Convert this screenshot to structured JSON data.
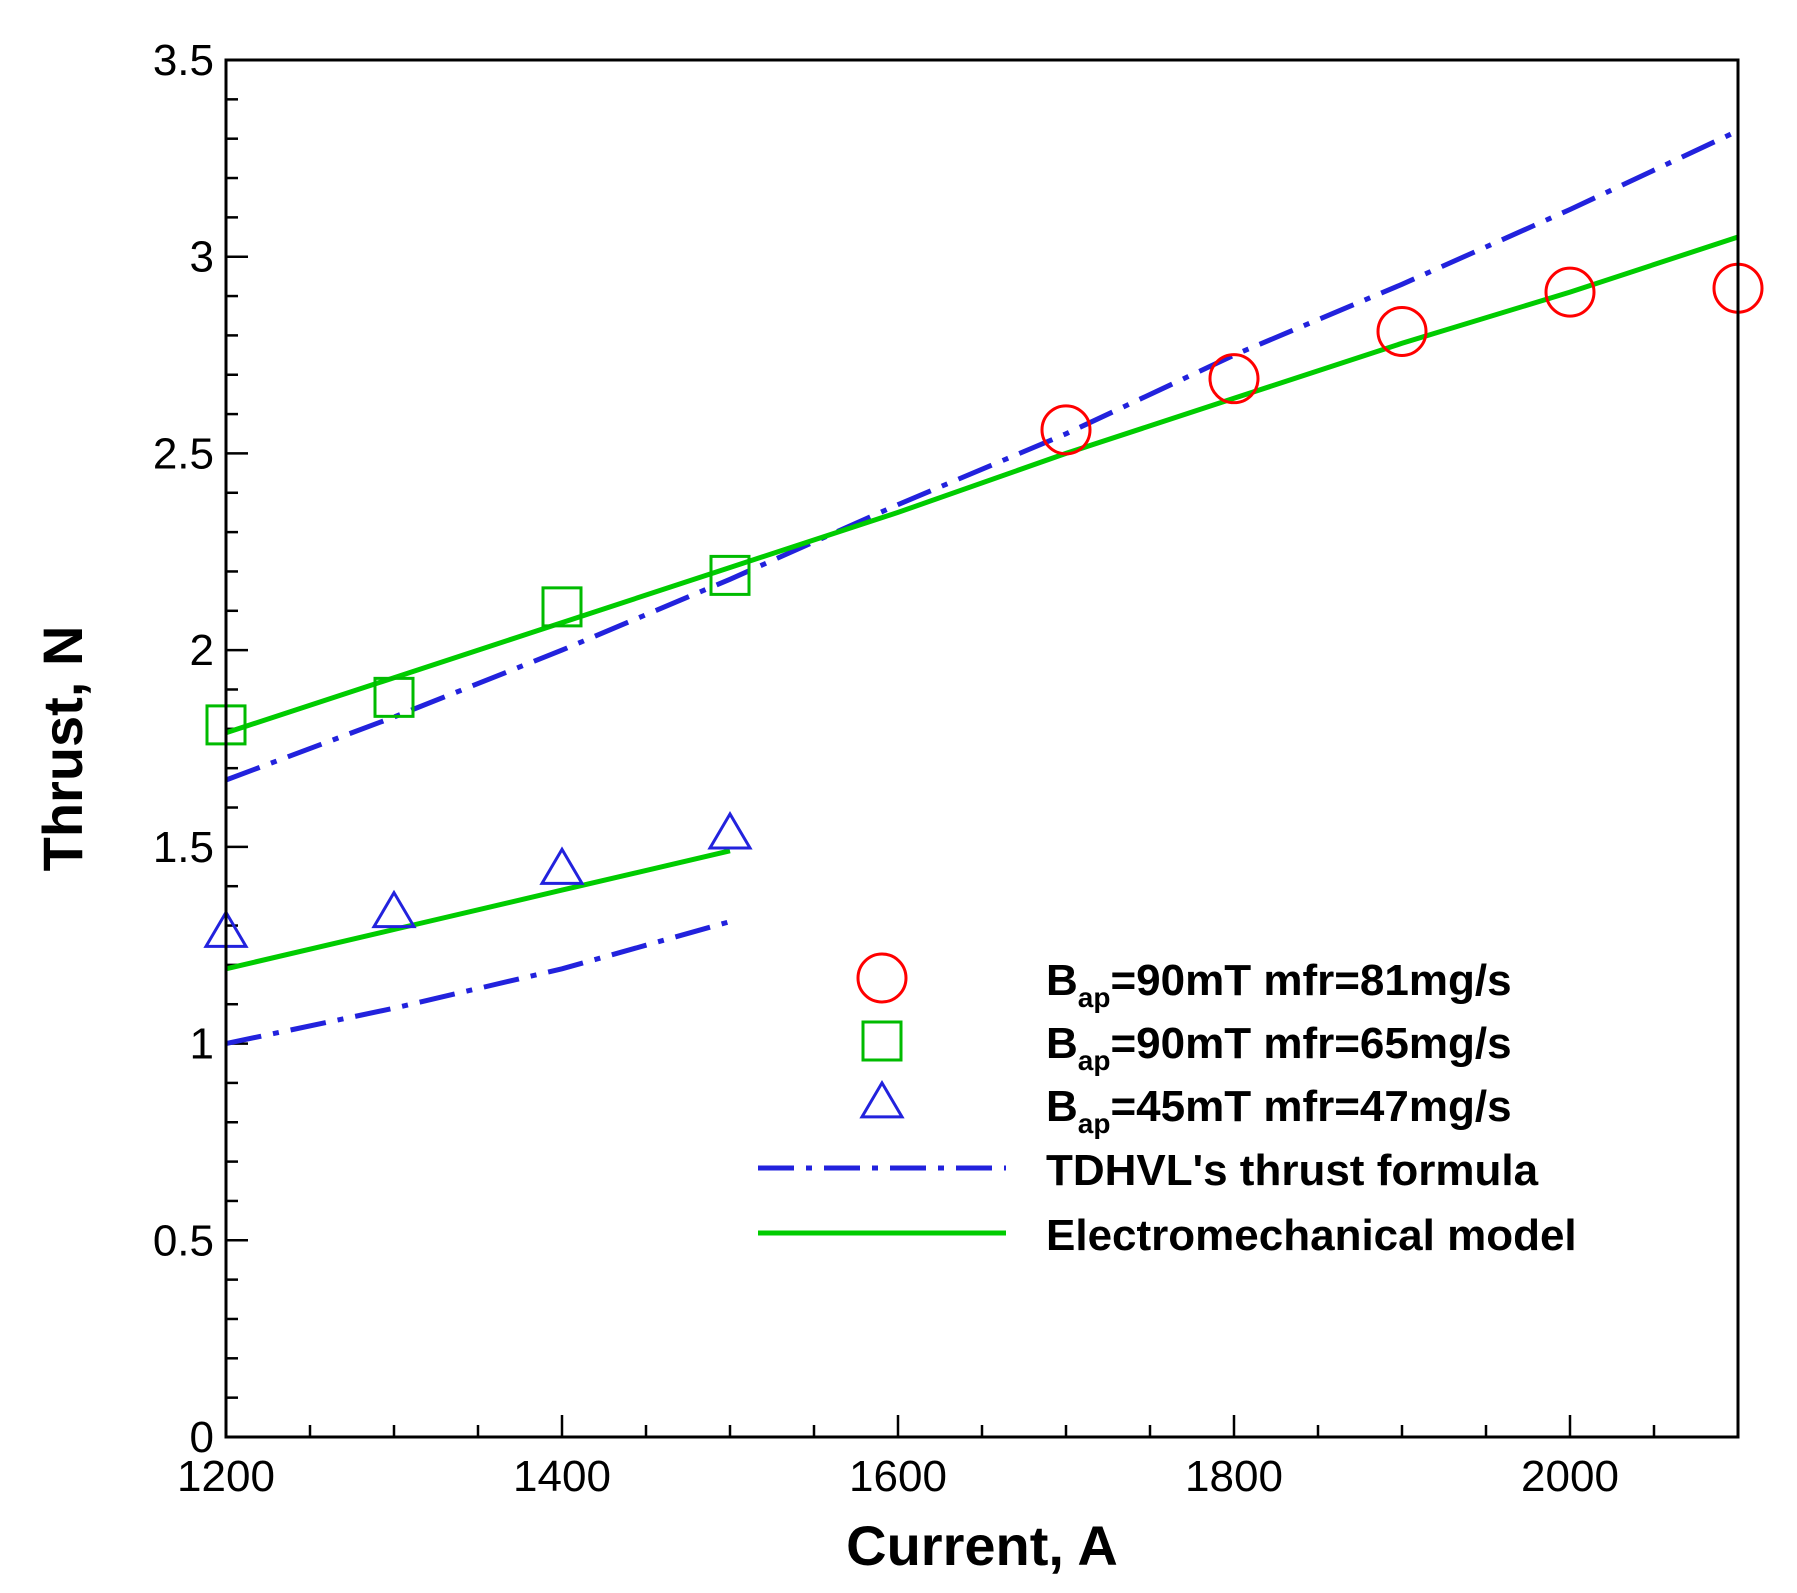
{
  "chart_data": {
    "type": "scatter",
    "title": "",
    "xlabel": "Current, A",
    "ylabel": "Thrust, N",
    "xlim": [
      1200,
      2100
    ],
    "ylim": [
      0,
      3.5
    ],
    "xticks_major": [
      1200,
      1400,
      1600,
      1800,
      2000
    ],
    "xtick_labels": [
      "1200",
      "1400",
      "1600",
      "1800",
      "2000"
    ],
    "yticks_major": [
      0,
      0.5,
      1,
      1.5,
      2,
      2.5,
      3,
      3.5
    ],
    "ytick_labels": [
      "0",
      "0.5",
      "1",
      "1.5",
      "2",
      "2.5",
      "3",
      "3.5"
    ],
    "grid": false,
    "legend_position": "lower-right",
    "series": [
      {
        "name_main": "B",
        "name_sub": "ap",
        "name_rest": "=90mT  mfr=81mg/s",
        "marker": "circle",
        "color": "#ff0000",
        "x": [
          1700,
          1800,
          1900,
          2000,
          2100
        ],
        "y": [
          2.56,
          2.69,
          2.81,
          2.91,
          2.92
        ]
      },
      {
        "name_main": "B",
        "name_sub": "ap",
        "name_rest": "=90mT  mfr=65mg/s",
        "marker": "square",
        "color": "#00bb00",
        "x": [
          1200,
          1300,
          1400,
          1500
        ],
        "y": [
          1.81,
          1.88,
          2.11,
          2.19
        ]
      },
      {
        "name_main": "B",
        "name_sub": "ap",
        "name_rest": "=45mT  mfr=47mg/s",
        "marker": "triangle",
        "color": "#2222dd",
        "x": [
          1200,
          1300,
          1400,
          1500
        ],
        "y": [
          1.28,
          1.33,
          1.44,
          1.53
        ]
      }
    ],
    "lines": [
      {
        "name": "TDHVL's thrust formula",
        "style": "dash-dot",
        "color": "#2222dd",
        "segments": [
          {
            "x": [
              1200,
              1300,
              1400,
              1500,
              1600,
              1700,
              1800,
              1900,
              2000,
              2100
            ],
            "y": [
              1.67,
              1.83,
              2.0,
              2.18,
              2.37,
              2.55,
              2.75,
              2.93,
              3.12,
              3.32
            ]
          },
          {
            "x": [
              1200,
              1300,
              1400,
              1500
            ],
            "y": [
              1.0,
              1.09,
              1.19,
              1.31
            ]
          }
        ]
      },
      {
        "name": "Electromechanical model",
        "style": "solid",
        "color": "#00cc00",
        "segments": [
          {
            "x": [
              1200,
              1300,
              1400,
              1500,
              1600,
              1700,
              1800,
              1900,
              2000,
              2100
            ],
            "y": [
              1.79,
              1.93,
              2.07,
              2.21,
              2.35,
              2.5,
              2.64,
              2.78,
              2.91,
              3.05
            ]
          },
          {
            "x": [
              1200,
              1300,
              1400,
              1500
            ],
            "y": [
              1.19,
              1.29,
              1.39,
              1.49
            ]
          }
        ]
      }
    ]
  }
}
